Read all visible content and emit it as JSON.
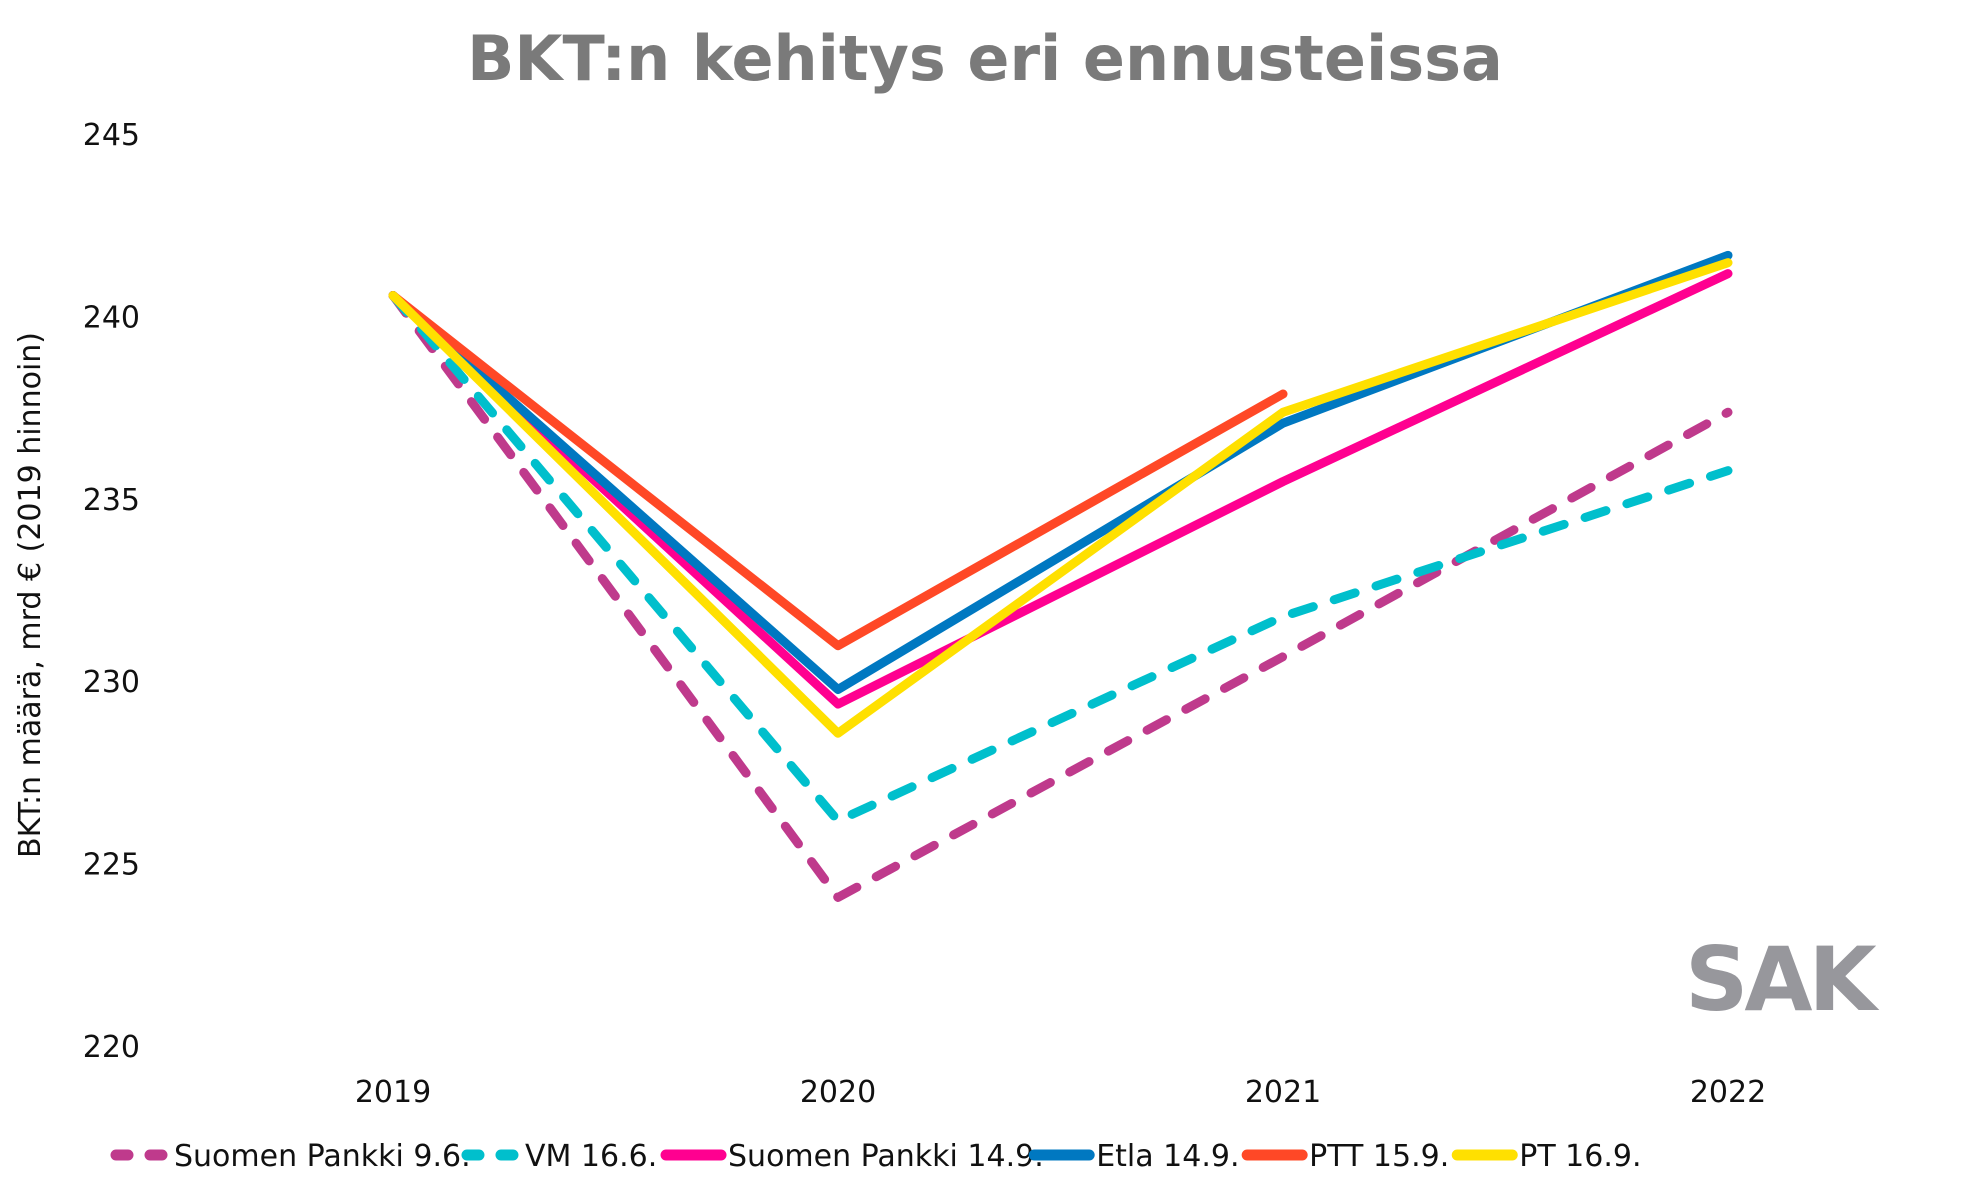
{
  "chart_data": {
    "type": "line",
    "title": "BKT:n kehitys eri ennusteissa",
    "xlabel": "",
    "ylabel": "BKT:n määrä, mrd € (2019 hinnoin)",
    "categories": [
      "2019",
      "2020",
      "2021",
      "2022"
    ],
    "ylim": [
      220,
      245
    ],
    "yticks": [
      220,
      225,
      230,
      235,
      240,
      245
    ],
    "grid": false,
    "legend_position": "bottom",
    "series": [
      {
        "name": "Suomen Pankki 9.6.",
        "color": "#bf3a8c",
        "dashed": true,
        "values": [
          240.6,
          224.1,
          230.7,
          237.4
        ]
      },
      {
        "name": "VM 16.6.",
        "color": "#00bfcc",
        "dashed": true,
        "values": [
          240.6,
          226.2,
          231.8,
          235.8
        ]
      },
      {
        "name": "Suomen Pankki 14.9.",
        "color": "#ff0090",
        "dashed": false,
        "values": [
          240.6,
          229.4,
          235.5,
          241.2
        ]
      },
      {
        "name": "Etla 14.9.",
        "color": "#0078c1",
        "dashed": false,
        "values": [
          240.6,
          229.8,
          237.1,
          241.7
        ]
      },
      {
        "name": "PTT 15.9.",
        "color": "#ff4826",
        "dashed": false,
        "values": [
          240.6,
          231.0,
          237.9,
          null
        ]
      },
      {
        "name": "PT 16.9.",
        "color": "#ffe000",
        "dashed": false,
        "values": [
          240.6,
          228.6,
          237.4,
          241.5
        ]
      }
    ]
  },
  "logo": "SAK"
}
